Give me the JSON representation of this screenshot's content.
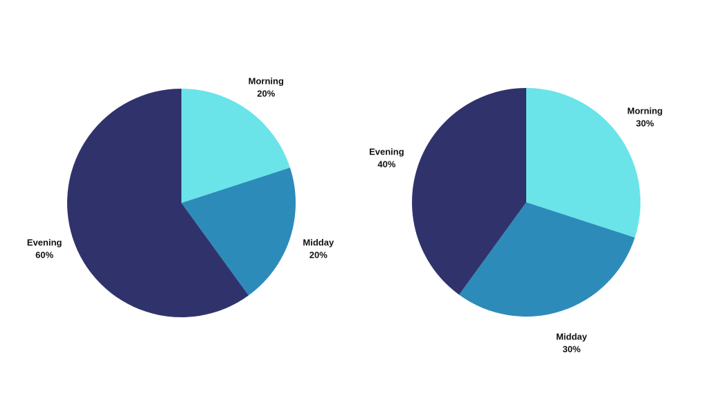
{
  "chart_data": [
    {
      "type": "pie",
      "title": "",
      "start": "top",
      "direction": "clockwise",
      "slices": [
        {
          "label": "Morning",
          "value": 20,
          "display": "20%",
          "color": "#6AE4E9"
        },
        {
          "label": "Midday",
          "value": 20,
          "display": "20%",
          "color": "#2D8BBA"
        },
        {
          "label": "Evening",
          "value": 60,
          "display": "60%",
          "color": "#30336B"
        }
      ]
    },
    {
      "type": "pie",
      "title": "",
      "start": "top",
      "direction": "clockwise",
      "slices": [
        {
          "label": "Morning",
          "value": 30,
          "display": "30%",
          "color": "#6AE4E9"
        },
        {
          "label": "Midday",
          "value": 30,
          "display": "30%",
          "color": "#2D8BBA"
        },
        {
          "label": "Evening",
          "value": 40,
          "display": "40%",
          "color": "#30336B"
        }
      ]
    }
  ]
}
